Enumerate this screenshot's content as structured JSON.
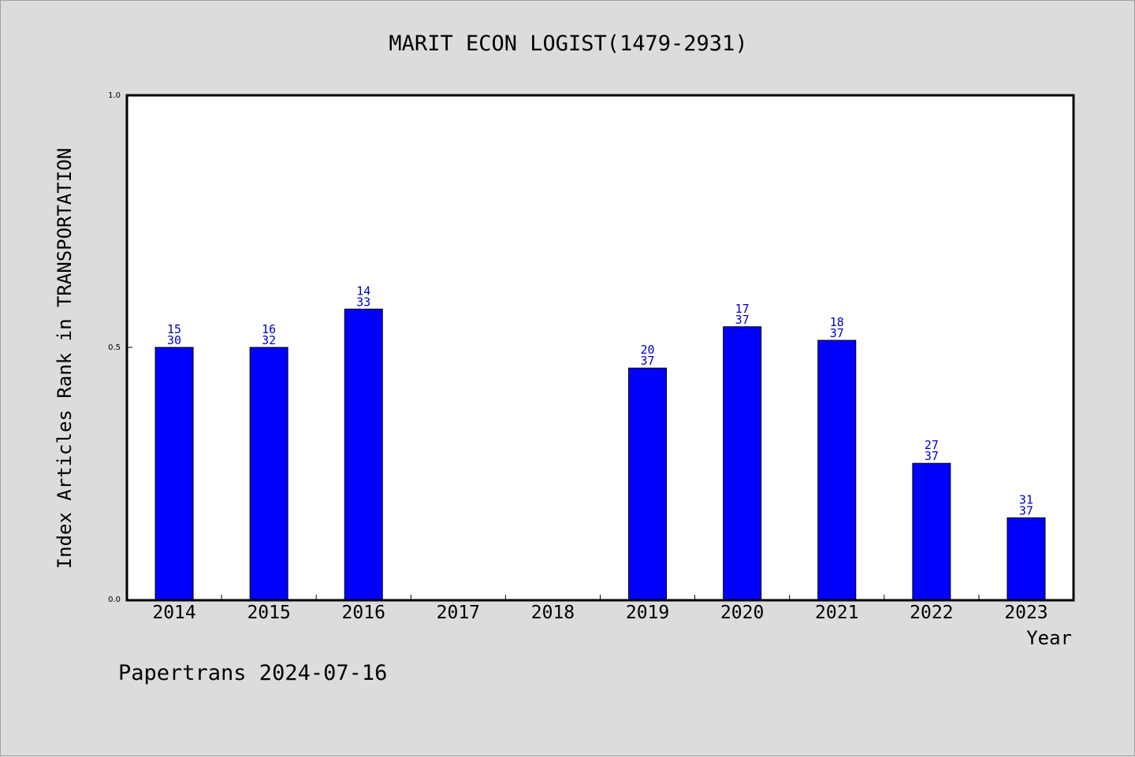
{
  "chart_data": {
    "type": "bar",
    "title": "MARIT ECON LOGIST(1479-2931)",
    "xlabel": "Year",
    "ylabel": "Index Articles Rank in TRANSPORTATION",
    "ylim": [
      0.0,
      1.0
    ],
    "yticks": [
      "0.0",
      "0.5",
      "1.0"
    ],
    "categories": [
      "2014",
      "2015",
      "2016",
      "2017",
      "2018",
      "2019",
      "2020",
      "2021",
      "2022",
      "2023"
    ],
    "values": [
      0.5,
      0.5,
      0.576,
      null,
      null,
      0.459,
      0.541,
      0.514,
      0.27,
      0.162
    ],
    "labels": [
      [
        "15",
        "30"
      ],
      [
        "16",
        "32"
      ],
      [
        "14",
        "33"
      ],
      null,
      null,
      [
        "20",
        "37"
      ],
      [
        "17",
        "37"
      ],
      [
        "18",
        "37"
      ],
      [
        "27",
        "37"
      ],
      [
        "31",
        "37"
      ]
    ],
    "bar_color": "#0000ff",
    "label_color": "#0000c8",
    "grid": false,
    "legend": "none"
  },
  "footer": "Papertrans 2024-07-16"
}
